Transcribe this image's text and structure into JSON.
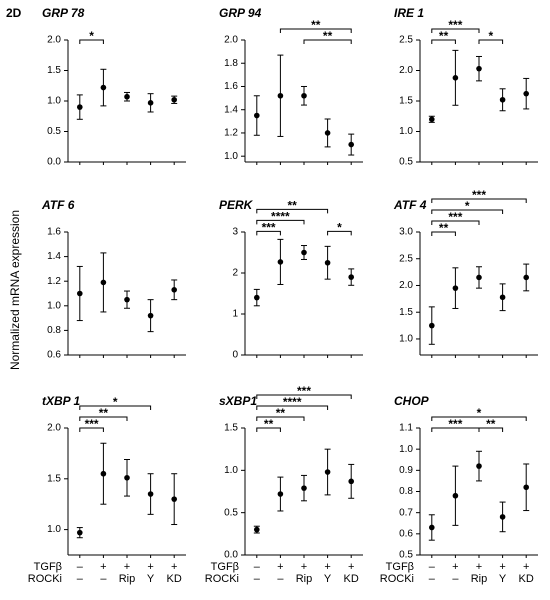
{
  "panel_label": "2D",
  "y_label": "Normalized mRNA expression",
  "conditions": [
    {
      "name": "TGFβ",
      "labels": [
        "–",
        "+",
        "+",
        "+",
        "+"
      ]
    },
    {
      "name": "ROCKi",
      "labels": [
        "–",
        "–",
        "Rip",
        "Y",
        "KD"
      ]
    }
  ],
  "chart_data": [
    {
      "type": "dot",
      "title": "GRP 78",
      "values": [
        0.9,
        1.22,
        1.07,
        0.97,
        1.02
      ],
      "errors": [
        0.2,
        0.3,
        0.07,
        0.15,
        0.06
      ],
      "ylim": [
        0,
        2
      ],
      "yticks": [
        {
          "value": 0,
          "label": "0.0"
        },
        0.5,
        {
          "value": 1,
          "label": "1.0"
        },
        1.5,
        {
          "value": 2,
          "label": "2.0"
        }
      ],
      "annotations": [
        {
          "from": 0,
          "to": 1,
          "label": "*"
        }
      ]
    },
    {
      "type": "dot",
      "title": "GRP 94",
      "values": [
        1.35,
        1.52,
        1.52,
        1.2,
        1.1
      ],
      "errors": [
        0.17,
        0.35,
        0.08,
        0.12,
        0.09
      ],
      "ylim": [
        0.95,
        2
      ],
      "yticks": [
        {
          "value": 1,
          "label": "1.0"
        },
        1.2,
        1.4,
        1.6,
        1.8,
        {
          "value": 2,
          "label": "2.0"
        }
      ],
      "annotations": [
        {
          "from": 2,
          "to": 4,
          "label": "**"
        },
        {
          "from": 1,
          "to": 4,
          "label": "**"
        }
      ]
    },
    {
      "type": "dot",
      "title": "IRE 1",
      "values": [
        1.2,
        1.88,
        2.03,
        1.52,
        1.62
      ],
      "errors": [
        0.05,
        0.45,
        0.2,
        0.18,
        0.25
      ],
      "ylim": [
        0.5,
        2.5
      ],
      "yticks": [
        0.5,
        {
          "value": 1,
          "label": "1.0"
        },
        1.5,
        {
          "value": 2,
          "label": "2.0"
        },
        2.5
      ],
      "annotations": [
        {
          "from": 0,
          "to": 1,
          "label": "**"
        },
        {
          "from": 2,
          "to": 3,
          "label": "*"
        },
        {
          "from": 0,
          "to": 2,
          "label": "***"
        }
      ]
    },
    {
      "type": "dot",
      "title": "ATF 6",
      "values": [
        1.1,
        1.19,
        1.05,
        0.92,
        1.13
      ],
      "errors": [
        0.22,
        0.24,
        0.07,
        0.13,
        0.08
      ],
      "ylim": [
        0.6,
        1.6
      ],
      "yticks": [
        0.6,
        0.8,
        {
          "value": 1,
          "label": "1.0"
        },
        1.2,
        1.4,
        1.6
      ],
      "annotations": []
    },
    {
      "type": "dot",
      "title": "PERK",
      "values": [
        1.4,
        2.27,
        2.5,
        2.25,
        1.9
      ],
      "errors": [
        0.2,
        0.55,
        0.17,
        0.4,
        0.2
      ],
      "ylim": [
        0,
        3
      ],
      "yticks": [
        0,
        1,
        2,
        3
      ],
      "annotations": [
        {
          "from": 0,
          "to": 1,
          "label": "***"
        },
        {
          "from": 3,
          "to": 4,
          "label": "*"
        },
        {
          "from": 0,
          "to": 2,
          "label": "****"
        },
        {
          "from": 0,
          "to": 3,
          "label": "**"
        }
      ]
    },
    {
      "type": "dot",
      "title": "ATF 4",
      "values": [
        1.25,
        1.95,
        2.15,
        1.78,
        2.15
      ],
      "errors": [
        0.35,
        0.38,
        0.2,
        0.25,
        0.25
      ],
      "ylim": [
        0.7,
        3
      ],
      "yticks": [
        {
          "value": 1,
          "label": "1.0"
        },
        1.5,
        {
          "value": 2,
          "label": "2.0"
        },
        2.5,
        {
          "value": 3,
          "label": "3.0"
        }
      ],
      "annotations": [
        {
          "from": 0,
          "to": 1,
          "label": "**"
        },
        {
          "from": 0,
          "to": 2,
          "label": "***"
        },
        {
          "from": 0,
          "to": 3,
          "label": "*"
        },
        {
          "from": 0,
          "to": 4,
          "label": "***"
        }
      ]
    },
    {
      "type": "dot",
      "title": "tXBP 1",
      "values": [
        0.97,
        1.55,
        1.51,
        1.35,
        1.3
      ],
      "errors": [
        0.05,
        0.3,
        0.18,
        0.2,
        0.25
      ],
      "ylim": [
        0.75,
        2
      ],
      "yticks": [
        {
          "value": 1,
          "label": "1.0"
        },
        1.5,
        {
          "value": 2,
          "label": "2.0"
        }
      ],
      "annotations": [
        {
          "from": 0,
          "to": 1,
          "label": "***"
        },
        {
          "from": 0,
          "to": 2,
          "label": "**"
        },
        {
          "from": 0,
          "to": 3,
          "label": "*"
        }
      ]
    },
    {
      "type": "dot",
      "title": "sXBP1",
      "values": [
        0.3,
        0.72,
        0.79,
        0.98,
        0.87
      ],
      "errors": [
        0.04,
        0.2,
        0.15,
        0.27,
        0.2
      ],
      "ylim": [
        0,
        1.5
      ],
      "yticks": [
        {
          "value": 0,
          "label": "0.0"
        },
        0.5,
        {
          "value": 1,
          "label": "1.0"
        },
        1.5
      ],
      "annotations": [
        {
          "from": 0,
          "to": 1,
          "label": "**"
        },
        {
          "from": 0,
          "to": 2,
          "label": "**"
        },
        {
          "from": 0,
          "to": 3,
          "label": "****"
        },
        {
          "from": 0,
          "to": 4,
          "label": "***"
        }
      ]
    },
    {
      "type": "dot",
      "title": "CHOP",
      "values": [
        0.63,
        0.78,
        0.92,
        0.68,
        0.82
      ],
      "errors": [
        0.06,
        0.14,
        0.07,
        0.07,
        0.11
      ],
      "ylim": [
        0.5,
        1.1
      ],
      "yticks": [
        0.5,
        0.6,
        0.7,
        0.8,
        0.9,
        {
          "value": 1,
          "label": "1.0"
        },
        1.1
      ],
      "annotations": [
        {
          "from": 0,
          "to": 2,
          "label": "***"
        },
        {
          "from": 2,
          "to": 3,
          "label": "**"
        },
        {
          "from": 0,
          "to": 4,
          "label": "*"
        }
      ]
    }
  ]
}
